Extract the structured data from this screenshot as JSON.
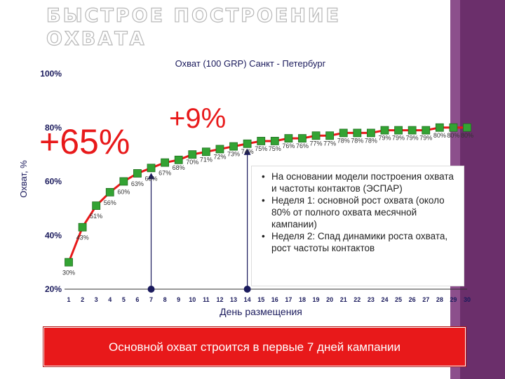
{
  "slide": {
    "title": "БЫСТРОЕ ПОСТРОЕНИЕ ОХВАТА",
    "banner": "Основной охват строится в первые 7 дней кампании",
    "bullets": [
      "На основании модели построения охвата и частоты контактов (ЭСПАР)",
      "Неделя 1: основной рост охвата (около 80% от полного охвата месячной кампании)",
      "Неделя 2: Спад динамики роста охвата, рост частоты контактов"
    ],
    "colors": {
      "accent_red": "#e8191a",
      "line": "#e8191a",
      "marker": "#33a333",
      "marker_edge": "#1f6f1f",
      "side_bar": "#6b2f6b",
      "axis": "#1a1a5c"
    }
  },
  "chart_data": {
    "type": "line",
    "title": "Охват  (100 GRP) Санкт - Петербург",
    "xlabel": "День размещения",
    "ylabel": "Охват, %",
    "x": [
      1,
      2,
      3,
      4,
      5,
      6,
      7,
      8,
      9,
      10,
      11,
      12,
      13,
      14,
      15,
      16,
      17,
      18,
      19,
      20,
      21,
      22,
      23,
      24,
      25,
      26,
      27,
      28,
      29,
      30
    ],
    "series": [
      {
        "values": [
          30,
          43,
          51,
          56,
          60,
          63,
          65,
          67,
          68,
          70,
          71,
          72,
          73,
          74,
          75,
          75,
          76,
          76,
          77,
          77,
          78,
          78,
          78,
          79,
          79,
          79,
          79,
          80,
          80,
          80
        ],
        "data_labels": [
          "30%",
          "43%",
          "51%",
          "56%",
          "60%",
          "63%",
          "65%",
          "67%",
          "68%",
          "70%",
          "71%",
          "72%",
          "73%",
          "74%",
          "75%",
          "75%",
          "76%",
          "76%",
          "77%",
          "77%",
          "78%",
          "78%",
          "78%",
          "79%",
          "79%",
          "79%",
          "79%",
          "80%",
          "80%",
          "80%"
        ]
      }
    ],
    "y_ticks": [
      "20%",
      "40%",
      "60%",
      "80%",
      "100%"
    ],
    "ylim": [
      20,
      100
    ],
    "xlim": [
      1,
      30
    ],
    "annotations": [
      "+65%",
      "+9%"
    ],
    "highlight_days": [
      7,
      14
    ],
    "grid": false
  }
}
